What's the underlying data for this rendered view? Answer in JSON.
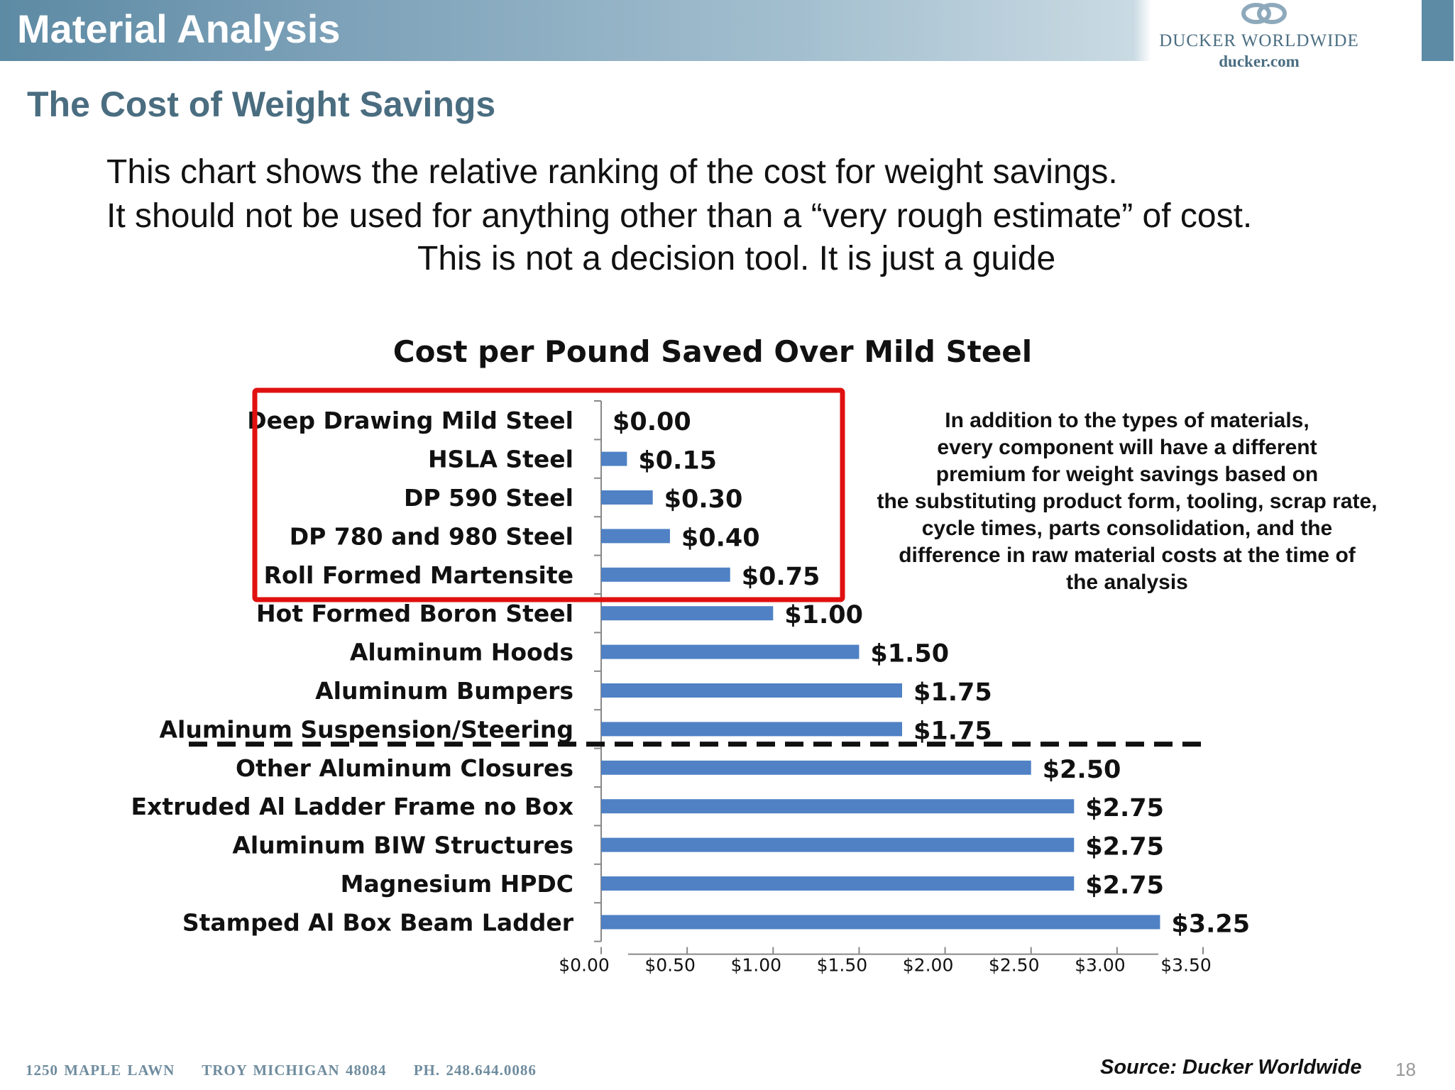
{
  "header": {
    "title": "Material Analysis",
    "logo_name": "DUCKER WORLDWIDE",
    "logo_url": "ducker.com"
  },
  "subtitle": "The Cost of Weight Savings",
  "intro": {
    "line1": "This chart shows the relative ranking of  the cost for weight savings.",
    "line2": "It should not be used for anything other than a “very rough estimate” of cost.",
    "line3": "This is not a decision tool. It is just a guide"
  },
  "note": {
    "lines": [
      "In addition to the types of materials,",
      "every component will have a different",
      "premium for weight savings based on",
      "the substituting product form, tooling, scrap rate,",
      "cycle times, parts consolidation, and the",
      "difference in raw material costs at the time of",
      "the analysis"
    ]
  },
  "footer": {
    "address": "1250 MAPLE LAWN",
    "city": "TROY MICHIGAN 48084",
    "phone": "PH. 248.644.0086",
    "source": "Source: Ducker Worldwide",
    "page": "18"
  },
  "colors": {
    "bar": "#4f81c4",
    "highlight_box": "#e01010",
    "header": "#5d8aa4"
  },
  "chart_data": {
    "type": "bar",
    "orientation": "horizontal",
    "title": "Cost per Pound Saved Over Mild Steel",
    "categories": [
      "Deep Drawing Mild Steel",
      "HSLA Steel",
      "DP 590 Steel",
      "DP 780 and 980 Steel",
      "Roll Formed Martensite",
      "Hot Formed Boron Steel",
      "Aluminum Hoods",
      "Aluminum Bumpers",
      "Aluminum Suspension/Steering",
      "Other Aluminum Closures",
      "Extruded Al Ladder Frame no Box",
      "Aluminum BIW Structures",
      "Magnesium HPDC",
      "Stamped Al Box Beam Ladder"
    ],
    "values": [
      0.0,
      0.15,
      0.3,
      0.4,
      0.75,
      1.0,
      1.5,
      1.75,
      1.75,
      2.5,
      2.75,
      2.75,
      2.75,
      3.25
    ],
    "value_labels": [
      "$0.00",
      "$0.15",
      "$0.30",
      "$0.40",
      "$0.75",
      "$1.00",
      "$1.50",
      "$1.75",
      "$1.75",
      "$2.50",
      "$2.75",
      "$2.75",
      "$2.75",
      "$3.25"
    ],
    "xlim": [
      0,
      3.5
    ],
    "xticks": [
      0,
      0.5,
      1.0,
      1.5,
      2.0,
      2.5,
      3.0,
      3.5
    ],
    "xtick_labels": [
      "$0.00",
      "$0.50",
      "$1.00",
      "$1.50",
      "$2.00",
      "$2.50",
      "$3.00",
      "$3.50"
    ],
    "highlighted_categories": [
      0,
      1,
      2,
      3,
      4
    ],
    "divider_after_index": 8,
    "grid": false,
    "legend": "none",
    "xlabel": "",
    "ylabel": ""
  }
}
